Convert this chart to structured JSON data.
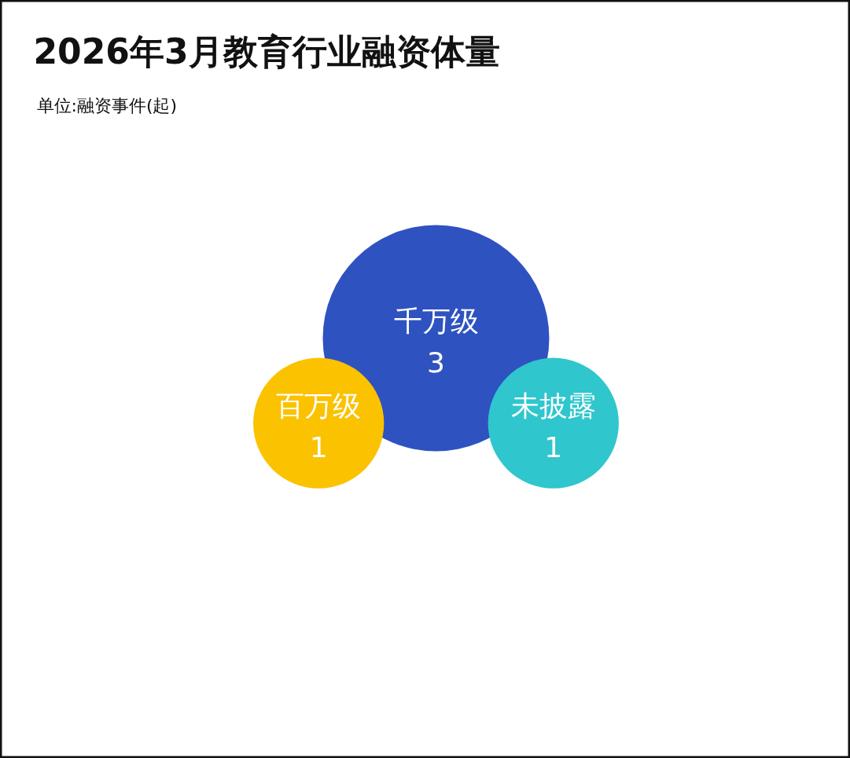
{
  "chart_data": {
    "type": "other",
    "title": "2026年3月教育行业融资体量",
    "subtitle": "单位:融资事件(起)",
    "categories": [
      "百万级",
      "千万级",
      "未披露"
    ],
    "values": [
      1,
      3,
      1
    ],
    "colors": [
      "#fbc200",
      "#2e52c0",
      "#2fc6cd"
    ],
    "data_labels": true
  }
}
